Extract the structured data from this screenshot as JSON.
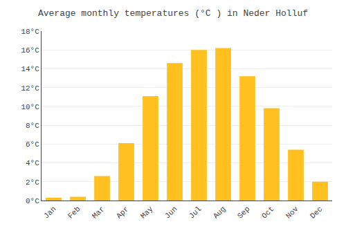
{
  "chart_data": {
    "type": "bar",
    "title": "Average monthly temperatures (°C ) in Neder Holluf",
    "categories": [
      "Jan",
      "Feb",
      "Mar",
      "Apr",
      "May",
      "Jun",
      "Jul",
      "Aug",
      "Sep",
      "Oct",
      "Nov",
      "Dec"
    ],
    "values": [
      0.3,
      0.4,
      2.6,
      6.1,
      11.1,
      14.6,
      16.0,
      16.2,
      13.2,
      9.8,
      5.4,
      2.0
    ],
    "color": "#FFC020",
    "ylim": [
      0,
      18
    ],
    "yticks": [
      {
        "value": 0,
        "label": "0°C"
      },
      {
        "value": 2,
        "label": "2°C"
      },
      {
        "value": 4,
        "label": "4°C"
      },
      {
        "value": 6,
        "label": "6°C"
      },
      {
        "value": 8,
        "label": "8°C"
      },
      {
        "value": 10,
        "label": "10°C"
      },
      {
        "value": 12,
        "label": "12°C"
      },
      {
        "value": 14,
        "label": "14°C"
      },
      {
        "value": 16,
        "label": "16°C"
      },
      {
        "value": 18,
        "label": "18°C"
      }
    ],
    "grid": true
  }
}
